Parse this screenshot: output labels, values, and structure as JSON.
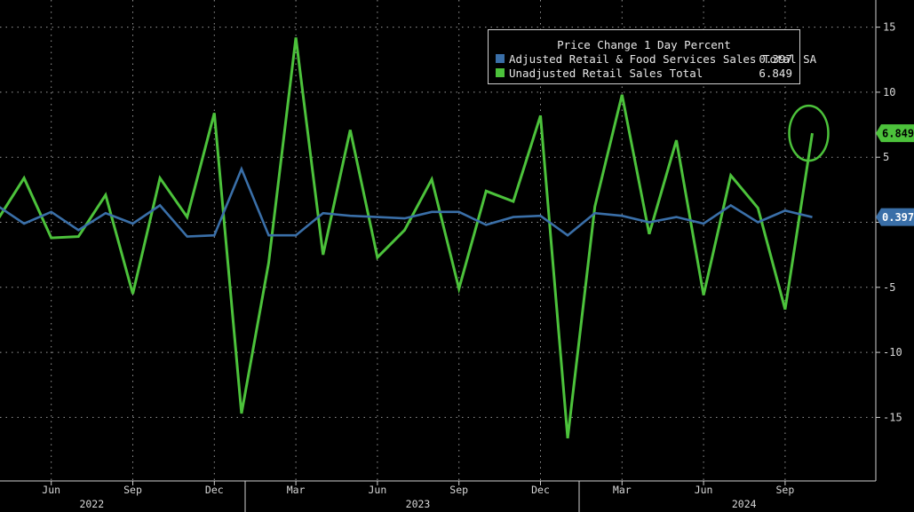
{
  "legend": {
    "title": "Price Change 1 Day Percent"
  },
  "chart_data": {
    "type": "line",
    "x": [
      "2022-04",
      "2022-05",
      "2022-06",
      "2022-07",
      "2022-08",
      "2022-09",
      "2022-10",
      "2022-11",
      "2022-12",
      "2023-01",
      "2023-02",
      "2023-03",
      "2023-04",
      "2023-05",
      "2023-06",
      "2023-07",
      "2023-08",
      "2023-09",
      "2023-10",
      "2023-11",
      "2023-12",
      "2024-01",
      "2024-02",
      "2024-03",
      "2024-04",
      "2024-05",
      "2024-06",
      "2024-07",
      "2024-08",
      "2024-09",
      "2024-10"
    ],
    "series": [
      {
        "name": "Adjusted Retail & Food Services Sales Total SA",
        "legend_value": "0.397",
        "last_label": "0.397",
        "color": "#3a6fa8",
        "values": [
          1.3,
          -0.1,
          0.8,
          -0.6,
          0.7,
          -0.1,
          1.3,
          -1.1,
          -1.0,
          4.1,
          -1.0,
          -1.0,
          0.7,
          0.5,
          0.4,
          0.3,
          0.8,
          0.8,
          -0.2,
          0.4,
          0.5,
          -1.0,
          0.7,
          0.5,
          0.0,
          0.4,
          -0.1,
          1.3,
          0.0,
          0.9,
          0.397
        ]
      },
      {
        "name": "Unadjusted Retail Sales Total",
        "legend_value": "6.849",
        "last_label": "6.849",
        "color": "#4cc23b",
        "values": [
          0.1,
          3.4,
          -1.2,
          -1.1,
          2.1,
          -5.5,
          3.4,
          0.4,
          8.4,
          -14.7,
          -3.1,
          14.2,
          -2.5,
          7.1,
          -2.7,
          -0.6,
          3.3,
          -5.1,
          2.4,
          1.6,
          8.2,
          -16.6,
          1.2,
          9.8,
          -0.9,
          6.3,
          -5.6,
          3.6,
          1.1,
          -6.7,
          6.849
        ]
      }
    ],
    "ylim": [
      -20,
      17
    ],
    "yticks": [
      -15,
      -10,
      -5,
      0,
      5,
      10,
      15
    ],
    "ytick_labels": [
      "-15",
      "-10",
      "-5",
      "0",
      "5",
      "10",
      "15"
    ],
    "xticks": [
      {
        "x": "2022-06",
        "label": "Jun"
      },
      {
        "x": "2022-09",
        "label": "Sep"
      },
      {
        "x": "2022-12",
        "label": "Dec"
      },
      {
        "x": "2023-03",
        "label": "Mar"
      },
      {
        "x": "2023-06",
        "label": "Jun"
      },
      {
        "x": "2023-09",
        "label": "Sep"
      },
      {
        "x": "2023-12",
        "label": "Dec"
      },
      {
        "x": "2024-03",
        "label": "Mar"
      },
      {
        "x": "2024-06",
        "label": "Jun"
      },
      {
        "x": "2024-09",
        "label": "Sep"
      }
    ],
    "year_labels": [
      {
        "x": "2022-07",
        "label": "2022"
      },
      {
        "x": "2023-07",
        "label": "2023"
      },
      {
        "x": "2024-07",
        "label": "2024"
      }
    ],
    "grid": true,
    "legend_position": "top-right",
    "highlight_last_point": true
  }
}
